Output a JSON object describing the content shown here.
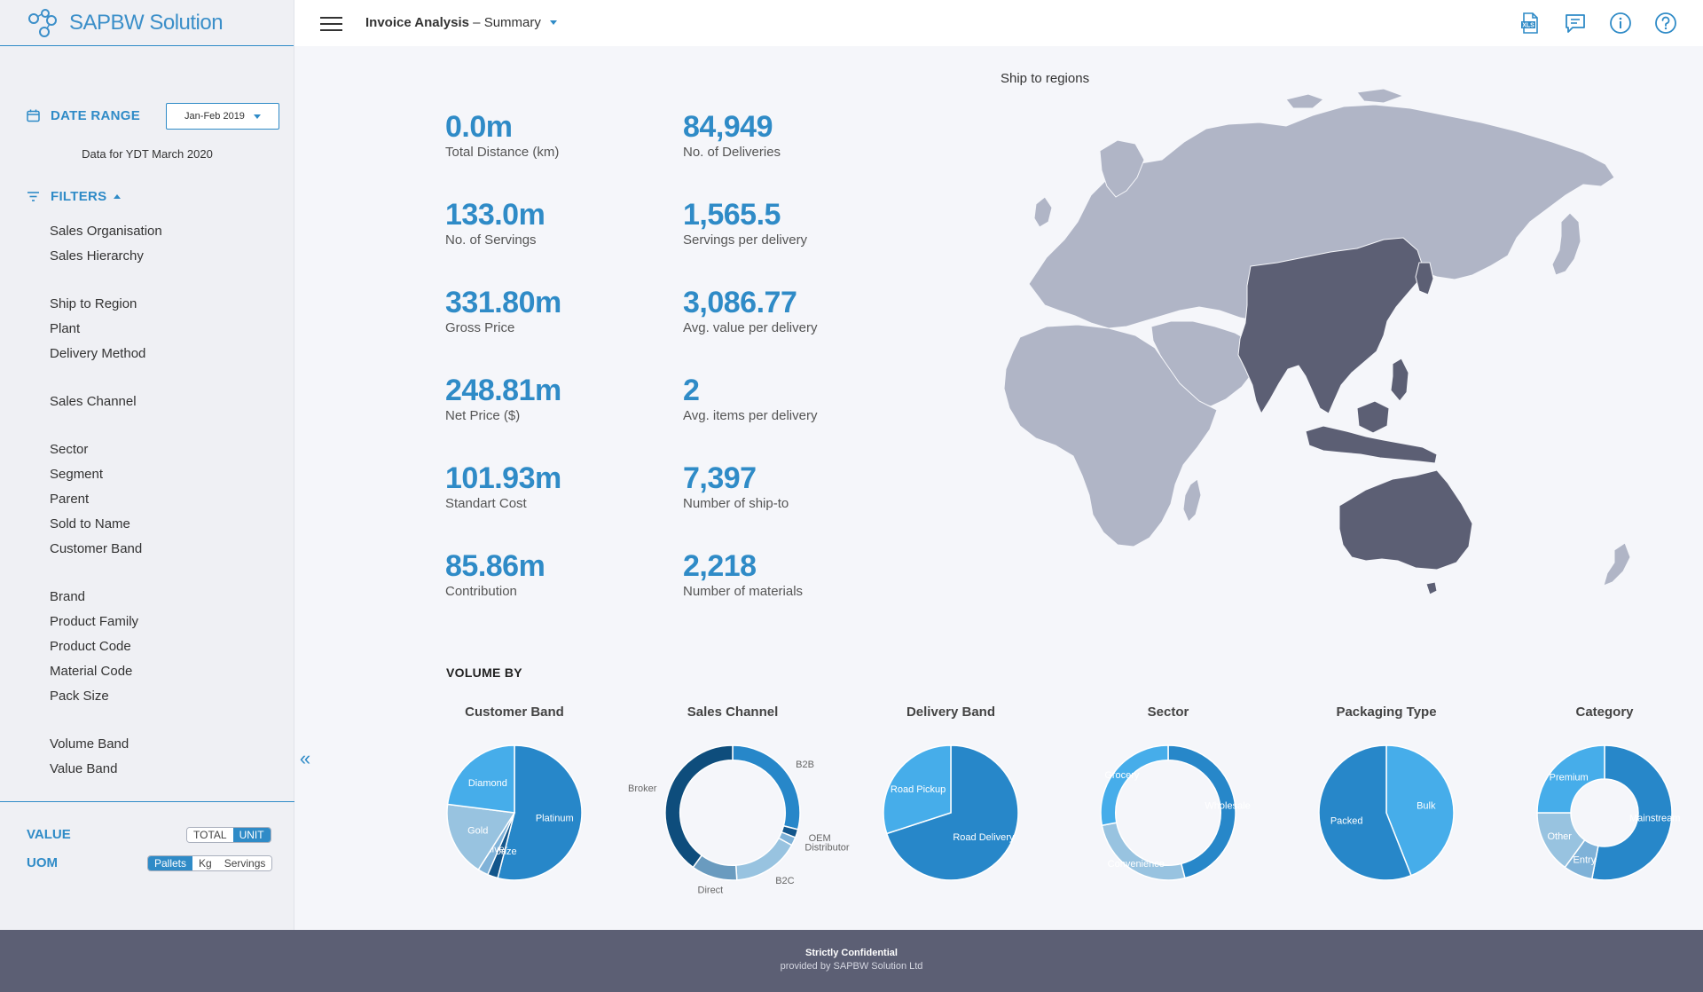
{
  "brand": {
    "name": "SAPBW Solution"
  },
  "header": {
    "title_main": "Invoice Analysis",
    "title_sep": " – ",
    "title_view": "Summary",
    "icons": [
      "xls-export-icon",
      "comment-icon",
      "info-icon",
      "help-icon"
    ]
  },
  "sidebar": {
    "date_range_label": "DATE RANGE",
    "date_range_value": "Jan-Feb 2019",
    "data_note": "Data for YDT March 2020",
    "filters_label": "FILTERS",
    "filters": [
      "Sales Organisation",
      "Sales Hierarchy",
      "Ship to Region",
      "Plant",
      "Delivery Method",
      "Sales Channel",
      "Sector",
      "Segment",
      "Parent",
      "Sold to Name",
      "Customer Band",
      "Brand",
      "Product Family",
      "Product Code",
      "Material Code",
      "Pack Size",
      "Volume Band",
      "Value Band"
    ],
    "value_label": "VALUE",
    "value_options": [
      "TOTAL",
      "UNIT"
    ],
    "value_selected": "UNIT",
    "uom_label": "UOM",
    "uom_options": [
      "Pallets",
      "Kg",
      "Servings"
    ],
    "uom_selected": "Pallets",
    "collapse_glyph": "«"
  },
  "kpis": [
    {
      "value": "0.0m",
      "label": "Total Distance (km)"
    },
    {
      "value": "84,949",
      "label": "No. of Deliveries"
    },
    {
      "value": "133.0m",
      "label": "No. of Servings"
    },
    {
      "value": "1,565.5",
      "label": "Servings per delivery"
    },
    {
      "value": "331.80m",
      "label": "Gross Price"
    },
    {
      "value": "3,086.77",
      "label": "Avg. value per delivery"
    },
    {
      "value": "248.81m",
      "label": "Net Price ($)"
    },
    {
      "value": "2",
      "label": "Avg. items per delivery"
    },
    {
      "value": "101.93m",
      "label": "Standart Cost"
    },
    {
      "value": "7,397",
      "label": "Number of ship-to"
    },
    {
      "value": "85.86m",
      "label": "Contribution"
    },
    {
      "value": "2,218",
      "label": "Number of materials"
    }
  ],
  "map": {
    "title": "Ship to regions",
    "colors": {
      "base": "#b0b5c6",
      "highlight": "#5c5f74"
    }
  },
  "volume_by": {
    "heading": "VOLUME BY"
  },
  "chart_data": [
    {
      "type": "pie",
      "title": "Customer Band",
      "inner": 0,
      "labels_inside": true,
      "slices": [
        {
          "name": "Platinum",
          "value": 54,
          "color": "#2787c9"
        },
        {
          "name": "Bronze",
          "value": 2.5,
          "color": "#13568b"
        },
        {
          "name": "Silver",
          "value": 2.5,
          "color": "#7fb2d8"
        },
        {
          "name": "Gold",
          "value": 18,
          "color": "#98c3e0"
        },
        {
          "name": "Diamond",
          "value": 23,
          "color": "#46adea"
        }
      ]
    },
    {
      "type": "pie",
      "title": "Sales Channel",
      "inner": 0.78,
      "labels_inside": false,
      "slices": [
        {
          "name": "B2B",
          "value": 29,
          "color": "#2787c9"
        },
        {
          "name": "OEM",
          "value": 2,
          "color": "#13568b"
        },
        {
          "name": "Distributor",
          "value": 2,
          "color": "#7fb2d8"
        },
        {
          "name": "B2C",
          "value": 16,
          "color": "#98c3e0"
        },
        {
          "name": "Direct",
          "value": 11,
          "color": "#6a9bbf"
        },
        {
          "name": "Broker",
          "value": 40,
          "color": "#0e4d7c"
        }
      ]
    },
    {
      "type": "pie",
      "title": "Delivery Band",
      "inner": 0,
      "labels_inside": true,
      "slices": [
        {
          "name": "Road Delivery",
          "value": 70,
          "color": "#2787c9"
        },
        {
          "name": "Road Pickup",
          "value": 30,
          "color": "#46adea"
        }
      ]
    },
    {
      "type": "pie",
      "title": "Sector",
      "inner": 0.78,
      "labels_inside": true,
      "slices": [
        {
          "name": "Wholesale",
          "value": 46,
          "color": "#2787c9"
        },
        {
          "name": "Convenience",
          "value": 26,
          "color": "#98c3e0"
        },
        {
          "name": "Grocery",
          "value": 28,
          "color": "#46adea"
        }
      ]
    },
    {
      "type": "pie",
      "title": "Packaging Type",
      "inner": 0,
      "labels_inside": true,
      "slices": [
        {
          "name": "Bulk",
          "value": 44,
          "color": "#46adea"
        },
        {
          "name": "Packed",
          "value": 56,
          "color": "#2787c9"
        }
      ]
    },
    {
      "type": "pie",
      "title": "Category",
      "inner": 0.5,
      "labels_inside": true,
      "slices": [
        {
          "name": "Mainstream",
          "value": 53,
          "color": "#2787c9"
        },
        {
          "name": "Entry",
          "value": 7,
          "color": "#7fb2d8"
        },
        {
          "name": "Other",
          "value": 15,
          "color": "#98c3e0"
        },
        {
          "name": "Premium",
          "value": 25,
          "color": "#46adea"
        }
      ]
    }
  ],
  "footer": {
    "line1": "Strictly Confidential",
    "line2": "provided by SAPBW Solution Ltd"
  }
}
